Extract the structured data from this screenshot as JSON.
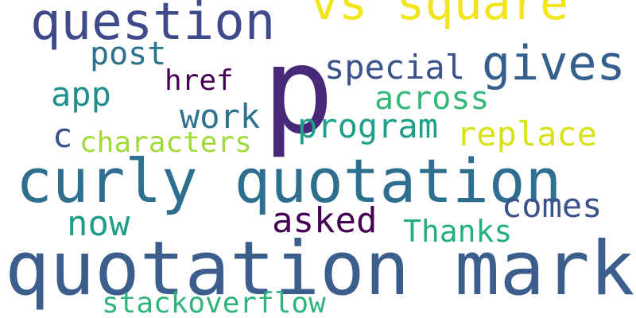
{
  "word_cloud": {
    "words": [
      {
        "text": "quotation marks",
        "color": "#3b5e8c"
      },
      {
        "text": "curly quotation",
        "color": "#2e6e8e"
      },
      {
        "text": "p",
        "color": "#482878"
      },
      {
        "text": "question",
        "color": "#3e4a89"
      },
      {
        "text": "vs square",
        "color": "#f2e51d"
      },
      {
        "text": "gives",
        "color": "#355f8d"
      },
      {
        "text": "post",
        "color": "#2c728e"
      },
      {
        "text": "special",
        "color": "#3b528b"
      },
      {
        "text": "app",
        "color": "#21908d"
      },
      {
        "text": "href",
        "color": "#440154"
      },
      {
        "text": "across",
        "color": "#35b779"
      },
      {
        "text": "work",
        "color": "#2c728e"
      },
      {
        "text": "program",
        "color": "#1f9e89"
      },
      {
        "text": "replace",
        "color": "#d8e219"
      },
      {
        "text": "c",
        "color": "#3b528b"
      },
      {
        "text": "characters",
        "color": "#a0da39"
      },
      {
        "text": "comes",
        "color": "#3b528b"
      },
      {
        "text": "now",
        "color": "#1f9e89"
      },
      {
        "text": "asked",
        "color": "#440154"
      },
      {
        "text": "Thanks",
        "color": "#26ad81"
      },
      {
        "text": "stackoverflow",
        "color": "#2fb47c"
      }
    ]
  }
}
